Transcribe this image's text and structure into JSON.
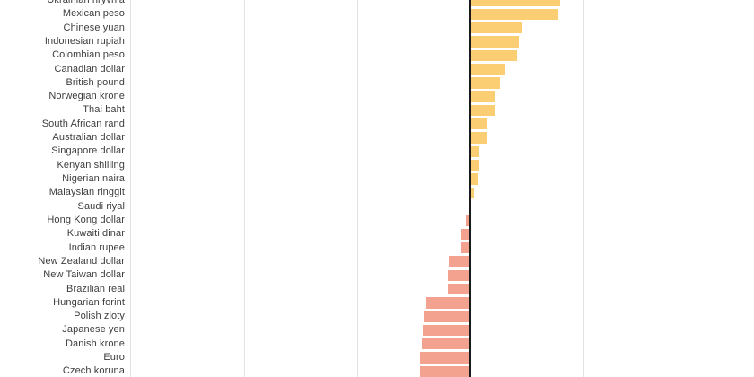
{
  "chart_data": {
    "type": "bar",
    "orientation": "horizontal",
    "title": "",
    "xlabel": "",
    "ylabel": "",
    "axis_note": "No tick labels visible in screenshot; values estimated in gridline units (1.0 = one vertical gridline spacing from the zero axis)",
    "grid": true,
    "xlim_units": [
      -3.0,
      2.5
    ],
    "categories": [
      "Ukrainian hryvnia",
      "Mexican peso",
      "Chinese yuan",
      "Indonesian rupiah",
      "Colombian peso",
      "Canadian dollar",
      "British pound",
      "Norwegian krone",
      "Thai baht",
      "South African rand",
      "Australian dollar",
      "Singapore dollar",
      "Kenyan shilling",
      "Nigerian naira",
      "Malaysian ringgit",
      "Saudi riyal",
      "Hong Kong dollar",
      "Kuwaiti dinar",
      "Indian rupee",
      "New Zealand dollar",
      "New Taiwan dollar",
      "Brazilian real",
      "Hungarian forint",
      "Polish zloty",
      "Japanese yen",
      "Danish krone",
      "Euro",
      "Czech koruna"
    ],
    "values": [
      0.79,
      0.78,
      0.45,
      0.43,
      0.41,
      0.31,
      0.265,
      0.22,
      0.22,
      0.14,
      0.14,
      0.08,
      0.083,
      0.07,
      0.03,
      0.0,
      -0.04,
      -0.083,
      -0.083,
      -0.19,
      -0.2,
      -0.2,
      -0.39,
      -0.41,
      -0.42,
      -0.43,
      -0.44,
      -0.445
    ],
    "colors": {
      "positive_bar": "#FBCE74",
      "negative_bar": "#F2A28F",
      "zero_axis": "#1a1a1a",
      "gridline": "#e3e3e3",
      "label_text": "#3d3d3d",
      "background": "#ffffff"
    },
    "legend": []
  }
}
